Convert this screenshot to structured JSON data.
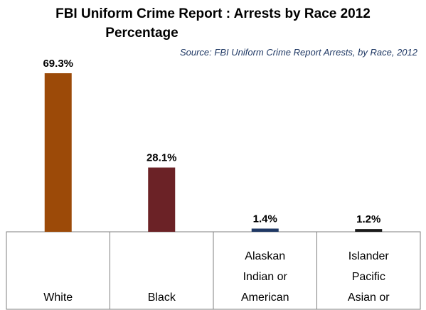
{
  "chart_data": {
    "type": "bar",
    "title": "FBI Uniform Crime Report : Arrests by Race 2012",
    "subtitle": "Percentage",
    "source": "Source: FBI Uniform Crime Report Arrests, by Race, 2012",
    "categories": [
      [
        "White"
      ],
      [
        "Black"
      ],
      [
        "Alaskan",
        "Indian or",
        "American"
      ],
      [
        "Islander",
        "Pacific",
        "Asian or"
      ]
    ],
    "values": [
      69.3,
      28.1,
      1.4,
      1.2
    ],
    "data_labels": [
      "69.3%",
      "28.1%",
      "1.4%",
      "1.2%"
    ],
    "colors": [
      "#9c4a08",
      "#6b2226",
      "#1f3864",
      "#1a1a1a"
    ],
    "ylim": [
      0,
      69.3
    ],
    "grid": false,
    "legend": "none"
  }
}
